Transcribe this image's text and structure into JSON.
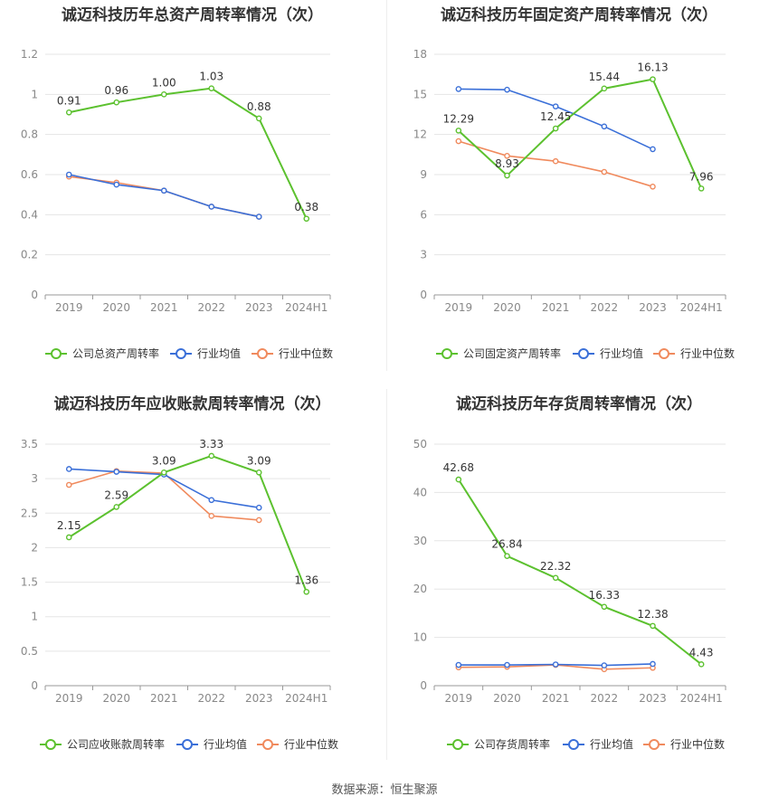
{
  "source_label": "数据来源：恒生聚源",
  "colors": {
    "company": "#5cc12f",
    "avg": "#3a6fd8",
    "median": "#f08a5d",
    "grid": "#e5e5e5",
    "axis": "#999999"
  },
  "chart_data": [
    {
      "type": "line",
      "title": "诚迈科技历年总资产周转率情况（次）",
      "categories": [
        "2019",
        "2020",
        "2021",
        "2022",
        "2023",
        "2024H1"
      ],
      "ylim": [
        0,
        1.2
      ],
      "yticks": [
        "0",
        "0.2",
        "0.4",
        "0.6",
        "0.8",
        "1",
        "1.2"
      ],
      "series": [
        {
          "name": "公司总资产周转率",
          "values": [
            0.91,
            0.96,
            1.0,
            1.03,
            0.88,
            0.38
          ],
          "labels": [
            "0.91",
            "0.96",
            "1.00",
            "1.03",
            "0.88",
            "0.38"
          ]
        },
        {
          "name": "行业均值",
          "values": [
            0.6,
            0.55,
            0.52,
            0.44,
            0.39,
            null
          ]
        },
        {
          "name": "行业中位数",
          "values": [
            0.59,
            0.56,
            0.52,
            0.44,
            0.39,
            null
          ]
        }
      ],
      "legend": "bottom"
    },
    {
      "type": "line",
      "title": "诚迈科技历年固定资产周转率情况（次）",
      "categories": [
        "2019",
        "2020",
        "2021",
        "2022",
        "2023",
        "2024H1"
      ],
      "ylim": [
        0,
        18
      ],
      "yticks": [
        "0",
        "3",
        "6",
        "9",
        "12",
        "15",
        "18"
      ],
      "series": [
        {
          "name": "公司固定资产周转率",
          "values": [
            12.29,
            8.93,
            12.45,
            15.44,
            16.13,
            7.96
          ],
          "labels": [
            "12.29",
            "8.93",
            "12.45",
            "15.44",
            "16.13",
            "7.96"
          ]
        },
        {
          "name": "行业均值",
          "values": [
            15.4,
            15.35,
            14.1,
            12.6,
            10.9,
            null
          ]
        },
        {
          "name": "行业中位数",
          "values": [
            11.5,
            10.4,
            10.0,
            9.2,
            8.1,
            null
          ]
        }
      ],
      "legend": "bottom"
    },
    {
      "type": "line",
      "title": "诚迈科技历年应收账款周转率情况（次）",
      "categories": [
        "2019",
        "2020",
        "2021",
        "2022",
        "2023",
        "2024H1"
      ],
      "ylim": [
        0,
        3.5
      ],
      "yticks": [
        "0",
        "0.5",
        "1",
        "1.5",
        "2",
        "2.5",
        "3",
        "3.5"
      ],
      "series": [
        {
          "name": "公司应收账款周转率",
          "values": [
            2.15,
            2.59,
            3.09,
            3.33,
            3.09,
            1.36
          ],
          "labels": [
            "2.15",
            "2.59",
            "3.09",
            "3.33",
            "3.09",
            "1.36"
          ]
        },
        {
          "name": "行业均值",
          "values": [
            3.14,
            3.1,
            3.06,
            2.69,
            2.58,
            null
          ]
        },
        {
          "name": "行业中位数",
          "values": [
            2.91,
            3.11,
            3.08,
            2.46,
            2.4,
            null
          ]
        }
      ],
      "legend": "bottom"
    },
    {
      "type": "line",
      "title": "诚迈科技历年存货周转率情况（次）",
      "categories": [
        "2019",
        "2020",
        "2021",
        "2022",
        "2023",
        "2024H1"
      ],
      "ylim": [
        0,
        50
      ],
      "yticks": [
        "0",
        "10",
        "20",
        "30",
        "40",
        "50"
      ],
      "series": [
        {
          "name": "公司存货周转率",
          "values": [
            42.68,
            26.84,
            22.32,
            16.33,
            12.38,
            4.43
          ],
          "labels": [
            "42.68",
            "26.84",
            "22.32",
            "16.33",
            "12.38",
            "4.43"
          ]
        },
        {
          "name": "行业均值",
          "values": [
            4.3,
            4.3,
            4.4,
            4.2,
            4.5,
            null
          ]
        },
        {
          "name": "行业中位数",
          "values": [
            3.8,
            3.9,
            4.3,
            3.4,
            3.7,
            null
          ]
        }
      ],
      "legend": "bottom"
    }
  ]
}
